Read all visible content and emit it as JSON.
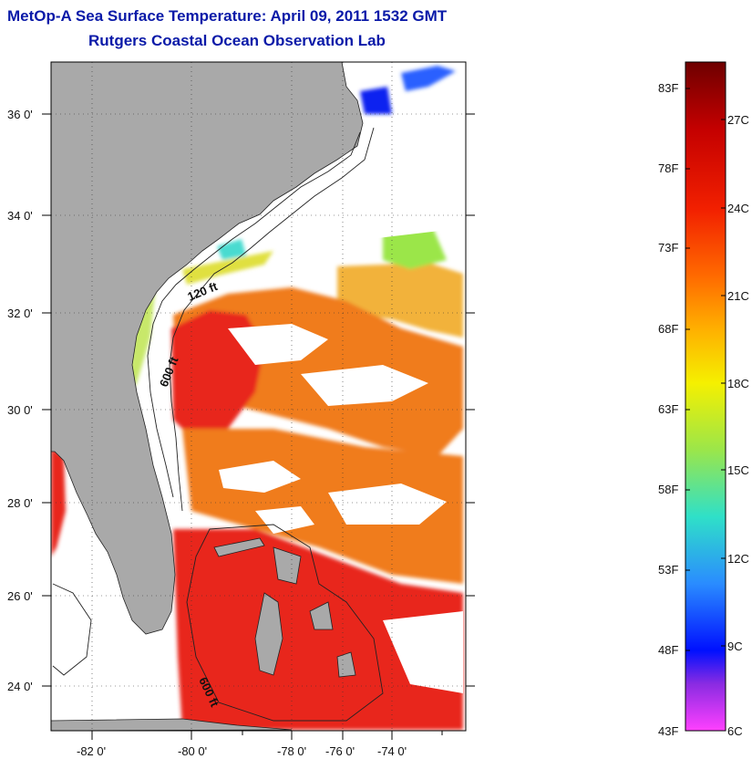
{
  "header": {
    "title": "MetOp-A Sea Surface Temperature:  April 09, 2011 1532 GMT",
    "subtitle": "Rutgers Coastal Ocean Observation Lab"
  },
  "map": {
    "lon_ticks": [
      "-82 0'",
      "-80 0'",
      "-78 0'",
      "-76 0'",
      "-74 0'"
    ],
    "lat_ticks": [
      "36 0'",
      "34 0'",
      "32 0'",
      "30 0'",
      "28 0'",
      "26 0'",
      "24 0'"
    ],
    "contour_labels": [
      "120 ft",
      "600 ft",
      "600 ft"
    ],
    "colors": {
      "land": "#a9a9a9",
      "cloud": "#ffffff",
      "warm_water": "#e8281a",
      "mid_water": "#f07b1c",
      "cool_water": "#f2b23a"
    }
  },
  "colorbar": {
    "fahrenheit": [
      "83F",
      "78F",
      "73F",
      "68F",
      "63F",
      "58F",
      "53F",
      "48F",
      "43F"
    ],
    "celsius": [
      "27C",
      "24C",
      "21C",
      "18C",
      "15C",
      "12C",
      "9C",
      "6C"
    ],
    "gradient": [
      "#6e0000",
      "#c40000",
      "#f22000",
      "#ff6a00",
      "#ffb000",
      "#f5f000",
      "#9be64a",
      "#2fe0c8",
      "#2a8cff",
      "#0010ff",
      "#8a2be2",
      "#ff40ff"
    ]
  }
}
